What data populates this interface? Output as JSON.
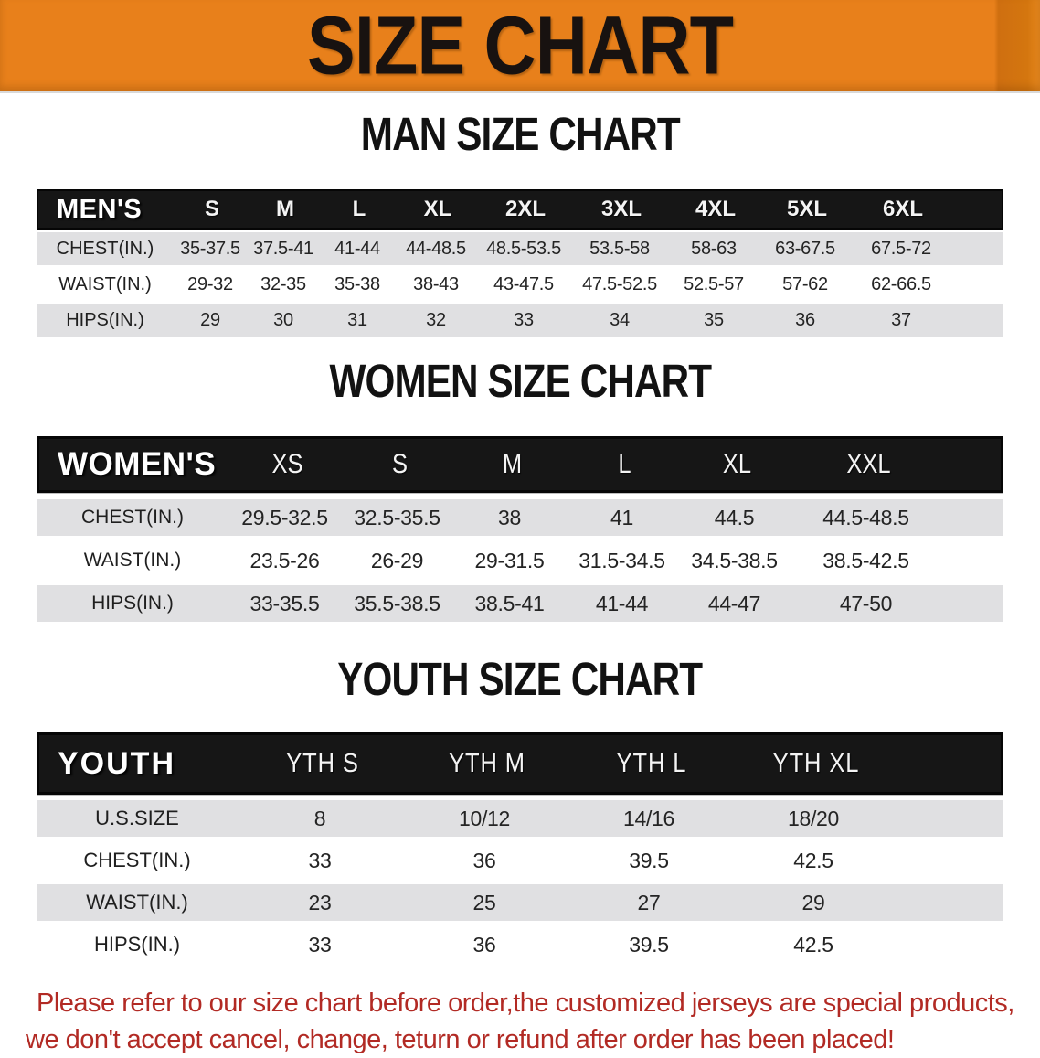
{
  "banner": {
    "title": "SIZE CHART",
    "bg_color": "#E8801B",
    "text_color": "#181210"
  },
  "colors": {
    "header_bar": "#161616",
    "stripe_gray": "#E0E0E2",
    "disclaimer_red": "#B22A24"
  },
  "sections": {
    "man_title": "MAN SIZE CHART",
    "women_title": "WOMEN SIZE CHART",
    "youth_title": "YOUTH SIZE CHART"
  },
  "tables": {
    "mens": {
      "header_label": "MEN'S",
      "sizes": [
        "S",
        "M",
        "L",
        "XL",
        "2XL",
        "3XL",
        "4XL",
        "5XL",
        "6XL"
      ],
      "rows": [
        {
          "label": "CHEST(IN.)",
          "values": [
            "35-37.5",
            "37.5-41",
            "41-44",
            "44-48.5",
            "48.5-53.5",
            "53.5-58",
            "58-63",
            "63-67.5",
            "67.5-72"
          ]
        },
        {
          "label": "WAIST(IN.)",
          "values": [
            "29-32",
            "32-35",
            "35-38",
            "38-43",
            "43-47.5",
            "47.5-52.5",
            "52.5-57",
            "57-62",
            "62-66.5"
          ]
        },
        {
          "label": "HIPS(IN.)",
          "values": [
            "29",
            "30",
            "31",
            "32",
            "33",
            "34",
            "35",
            "36",
            "37"
          ]
        }
      ]
    },
    "womens": {
      "header_label": "WOMEN'S",
      "sizes": [
        "XS",
        "S",
        "M",
        "L",
        "XL",
        "XXL"
      ],
      "rows": [
        {
          "label": "CHEST(IN.)",
          "values": [
            "29.5-32.5",
            "32.5-35.5",
            "38",
            "41",
            "44.5",
            "44.5-48.5"
          ]
        },
        {
          "label": "WAIST(IN.)",
          "values": [
            "23.5-26",
            "26-29",
            "29-31.5",
            "31.5-34.5",
            "34.5-38.5",
            "38.5-42.5"
          ]
        },
        {
          "label": "HIPS(IN.)",
          "values": [
            "33-35.5",
            "35.5-38.5",
            "38.5-41",
            "41-44",
            "44-47",
            "47-50"
          ]
        }
      ]
    },
    "youth": {
      "header_label": "YOUTH",
      "sizes": [
        "YTH S",
        "YTH M",
        "YTH L",
        "YTH XL"
      ],
      "rows": [
        {
          "label": "U.S.SIZE",
          "values": [
            "8",
            "10/12",
            "14/16",
            "18/20"
          ]
        },
        {
          "label": "CHEST(IN.)",
          "values": [
            "33",
            "36",
            "39.5",
            "42.5"
          ]
        },
        {
          "label": "WAIST(IN.)",
          "values": [
            "23",
            "25",
            "27",
            "29"
          ]
        },
        {
          "label": "HIPS(IN.)",
          "values": [
            "33",
            "36",
            "39.5",
            "42.5"
          ]
        }
      ]
    }
  },
  "disclaimer": {
    "line1": "Please refer to our size chart before order,the customized jerseys are special products,",
    "line2": "we don't accept cancel, change, teturn or refund after order has been placed!"
  }
}
